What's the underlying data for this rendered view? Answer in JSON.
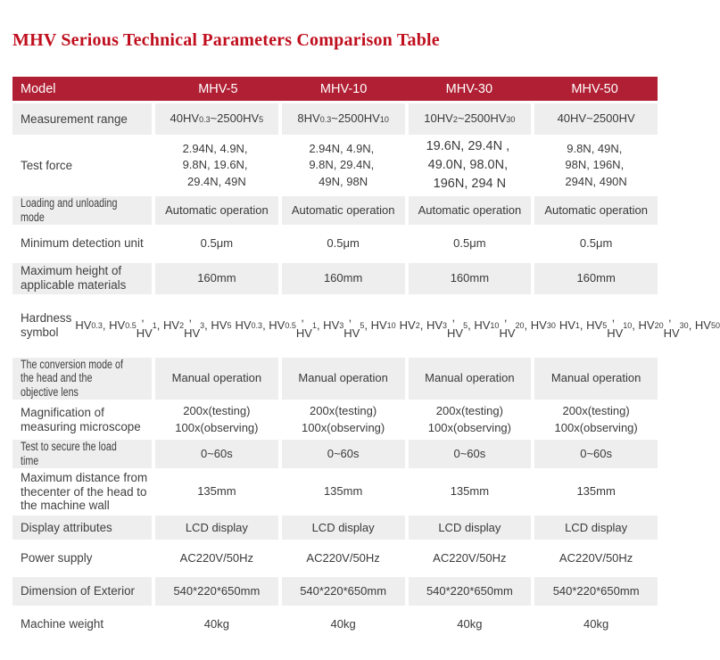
{
  "page": {
    "title": "MHV Serious Technical Parameters Comparison Table"
  },
  "colors": {
    "title_color": "#C00F1E",
    "header_bg": "#B01F33",
    "header_text": "#FFFFFF",
    "alt_row_bg": "#EFEEEF",
    "body_text": "#3A3A3A"
  },
  "table": {
    "header": {
      "model_label": "Model",
      "columns": [
        "MHV-5",
        "MHV-10",
        "MHV-30",
        "MHV-50"
      ]
    },
    "rows": [
      {
        "label": "Measurement range",
        "label_condensed": false,
        "values": [
          "40HV_{0.3}~2500HV_{5}",
          "8HV_{0.3}~2500HV_{10}",
          "10HV_{2}~2500HV_{30}",
          "40HV~2500HV"
        ]
      },
      {
        "label": "Test force",
        "label_condensed": false,
        "values": [
          "2.94N、4.9N、\n9.8N、19.6N、\n29.4N、49N",
          "2.94N、4.9N、\n9.8N、29.4N、\n49N、98N",
          "19.6N、29.4N 、\n49.0N、98.0N、\n196N、294 N",
          "9.8N、49N、\n98N、196N、\n294N、490N"
        ]
      },
      {
        "label": "Loading and unloading mode",
        "label_condensed": true,
        "values": [
          "Automatic operation",
          "Automatic operation",
          "Automatic operation",
          "Automatic operation"
        ]
      },
      {
        "label": "Minimum detection unit",
        "label_condensed": false,
        "values": [
          "0.5μm",
          "0.5μm",
          "0.5μm",
          "0.5μm"
        ]
      },
      {
        "label": "Maximum height of applicable materials",
        "label_condensed": false,
        "values": [
          "160mm",
          "160mm",
          "160mm",
          "160mm"
        ]
      },
      {
        "label": "Hardness symbol",
        "label_condensed": false,
        "values": [
          "HV_{0.3}、HV_{0.5}、\nHV_{1}、HV_{2}、\nHV_{3}、HV_{5}",
          "HV_{0.3}、HV_{0.5}、\nHV_{1}、HV_{3}、\nHV_{5}、HV_{10}",
          "HV_{2}、HV_{3}、\nHV_{5}、HV_{10}、\nHV_{20}、HV_{30}",
          "HV_{1}、HV_{5}、\nHV_{10}、HV_{20}、\nHV_{30}、HV_{50}"
        ]
      },
      {
        "label": "The conversion mode of the head and the objective lens",
        "label_condensed": true,
        "values": [
          "Manual operation",
          "Manual operation",
          "Manual operation",
          "Manual operation"
        ]
      },
      {
        "label": "Magnification of measuring microscope",
        "label_condensed": false,
        "values": [
          "200x(testing)\n100x(observing)",
          "200x(testing)\n100x(observing)",
          "200x(testing)\n100x(observing)",
          "200x(testing)\n100x(observing)"
        ]
      },
      {
        "label": "Test to secure the load time",
        "label_condensed": true,
        "values": [
          "0~60s",
          "0~60s",
          "0~60s",
          "0~60s"
        ]
      },
      {
        "label": "Maximum distance from thecenter of the head to the machine wall",
        "label_condensed": false,
        "values": [
          "135mm",
          "135mm",
          "135mm",
          "135mm"
        ]
      },
      {
        "label": "Display attributes",
        "label_condensed": false,
        "values": [
          "LCD display",
          "LCD display",
          "LCD display",
          "LCD display"
        ]
      },
      {
        "label": "Power supply",
        "label_condensed": false,
        "values": [
          "AC220V/50Hz",
          "AC220V/50Hz",
          "AC220V/50Hz",
          "AC220V/50Hz"
        ]
      },
      {
        "label": "Dimension of Exterior",
        "label_condensed": false,
        "values": [
          "540*220*650mm",
          "540*220*650mm",
          "540*220*650mm",
          "540*220*650mm"
        ]
      },
      {
        "label": "Machine weight",
        "label_condensed": false,
        "values": [
          "40kg",
          "40kg",
          "40kg",
          "40kg"
        ]
      }
    ]
  }
}
